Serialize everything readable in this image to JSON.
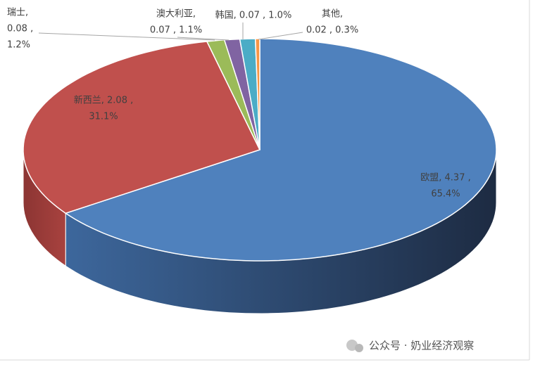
{
  "chart_data": {
    "type": "pie3d",
    "categories": [
      "欧盟",
      "新西兰",
      "瑞士",
      "澳大利亚",
      "韩国",
      "其他"
    ],
    "values": [
      4.37,
      2.08,
      0.08,
      0.07,
      0.07,
      0.02
    ],
    "data_labels": [
      [
        "欧盟, 4.37 ,",
        "65.4%"
      ],
      [
        "新西兰, 2.08 ,",
        "31.1%"
      ],
      [
        "瑞士,",
        "0.08 ,",
        "1.2%"
      ],
      [
        "澳大利亚,",
        "0.07 , 1.1%"
      ],
      [
        "韩国, 0.07 , 1.0%"
      ],
      [
        "其他,",
        "0.02 , 0.3%"
      ]
    ],
    "colors": [
      "#4f81bd",
      "#c0504d",
      "#9bbb59",
      "#8064a2",
      "#4bacc6",
      "#f79646"
    ],
    "watermark": "公众号 · 奶业经济观察"
  }
}
